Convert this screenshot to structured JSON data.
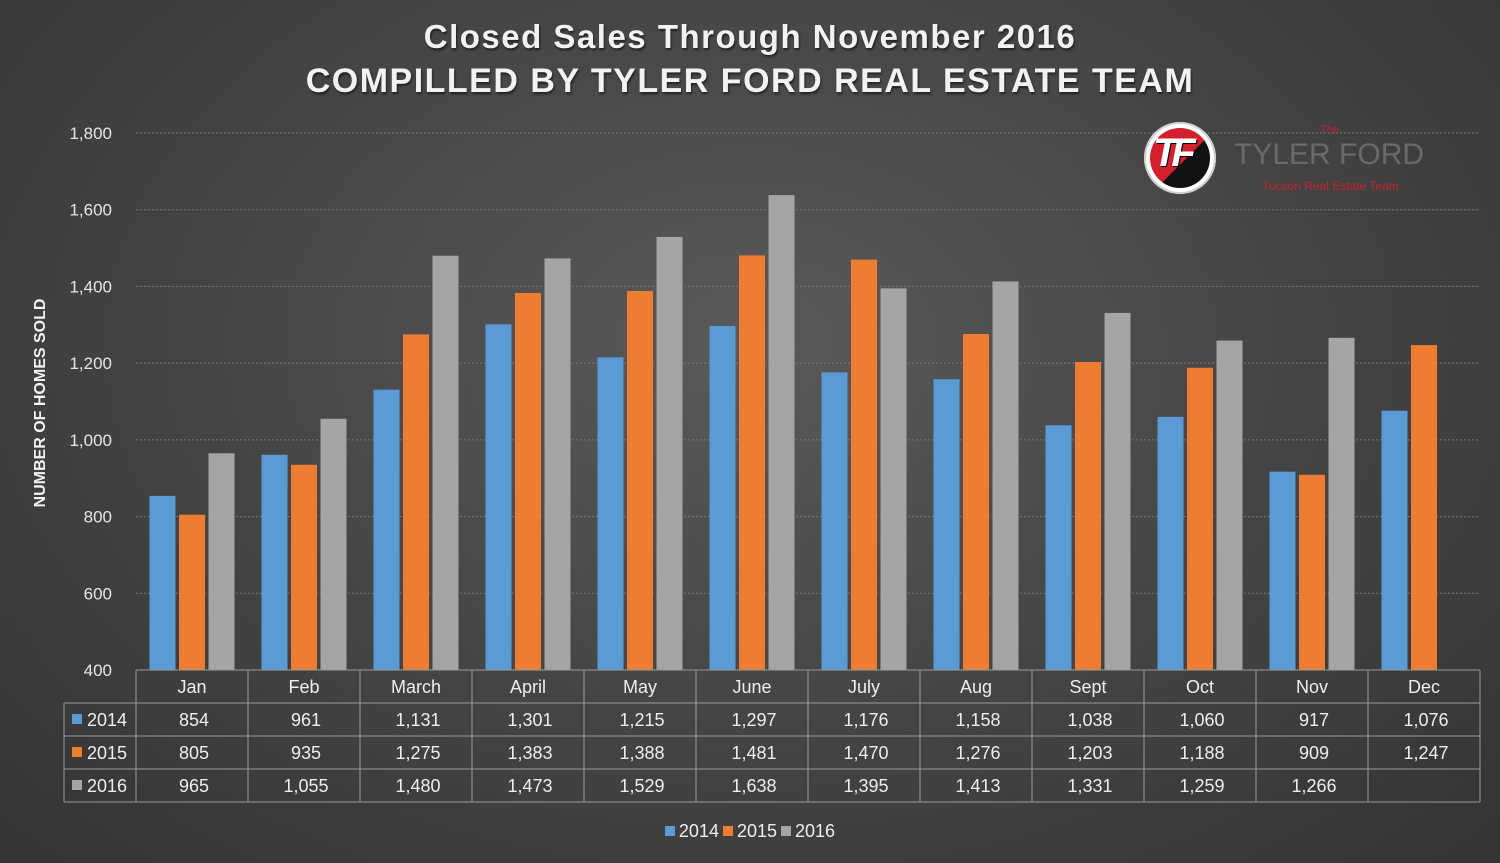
{
  "chart_data": {
    "type": "bar",
    "title": "Closed Sales Through November 2016",
    "subtitle": "COMPILLED BY TYLER FORD REAL ESTATE TEAM",
    "xlabel": "",
    "ylabel": "NUMBER OF HOMES SOLD",
    "ylim": [
      400,
      1800
    ],
    "yticks": [
      "400",
      "600",
      "800",
      "1,000",
      "1,200",
      "1,400",
      "1,600",
      "1,800"
    ],
    "grid": true,
    "legend_position": "bottom",
    "categories": [
      "Jan",
      "Feb",
      "March",
      "April",
      "May",
      "June",
      "July",
      "Aug",
      "Sept",
      "Oct",
      "Nov",
      "Dec"
    ],
    "series": [
      {
        "name": "2014",
        "color": "#5b9bd5",
        "values": [
          854,
          961,
          1131,
          1301,
          1215,
          1297,
          1176,
          1158,
          1038,
          1060,
          917,
          1076
        ],
        "labels": [
          "854",
          "961",
          "1,131",
          "1,301",
          "1,215",
          "1,297",
          "1,176",
          "1,158",
          "1,038",
          "1,060",
          "917",
          "1,076"
        ]
      },
      {
        "name": "2015",
        "color": "#ed7d31",
        "values": [
          805,
          935,
          1275,
          1383,
          1388,
          1481,
          1470,
          1276,
          1203,
          1188,
          909,
          1247
        ],
        "labels": [
          "805",
          "935",
          "1,275",
          "1,383",
          "1,388",
          "1,481",
          "1,470",
          "1,276",
          "1,203",
          "1,188",
          "909",
          "1,247"
        ]
      },
      {
        "name": "2016",
        "color": "#a5a5a5",
        "values": [
          965,
          1055,
          1480,
          1473,
          1529,
          1638,
          1395,
          1413,
          1331,
          1259,
          1266,
          null
        ],
        "labels": [
          "965",
          "1,055",
          "1,480",
          "1,473",
          "1,529",
          "1,638",
          "1,395",
          "1,413",
          "1,331",
          "1,259",
          "1,266",
          ""
        ]
      }
    ]
  },
  "logo": {
    "the": "The",
    "name": "TYLER FORD",
    "tagline": "Tucson Real Estate Team",
    "monogram": "TF"
  }
}
